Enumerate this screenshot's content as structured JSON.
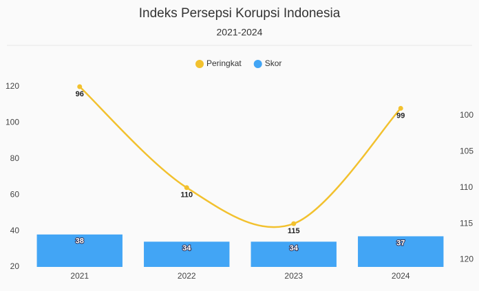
{
  "chart_data": {
    "type": "bar",
    "title": "Indeks Persepsi Korupsi Indonesia",
    "subtitle": "2021-2024",
    "categories": [
      "2021",
      "2022",
      "2023",
      "2024"
    ],
    "series": [
      {
        "name": "Peringkat",
        "type": "line",
        "color": "#f2c12e",
        "axis": "y2",
        "values": [
          96,
          110,
          115,
          99
        ]
      },
      {
        "name": "Skor",
        "type": "bar",
        "color": "#42a5f5",
        "values": [
          38,
          34,
          34,
          37
        ]
      }
    ],
    "ylim": [
      20,
      120
    ],
    "yticks": [
      20,
      40,
      60,
      80,
      100,
      120
    ],
    "y2lim": [
      121,
      96
    ],
    "y2ticks": [
      100,
      105,
      110,
      115,
      120
    ],
    "legend": "top"
  }
}
